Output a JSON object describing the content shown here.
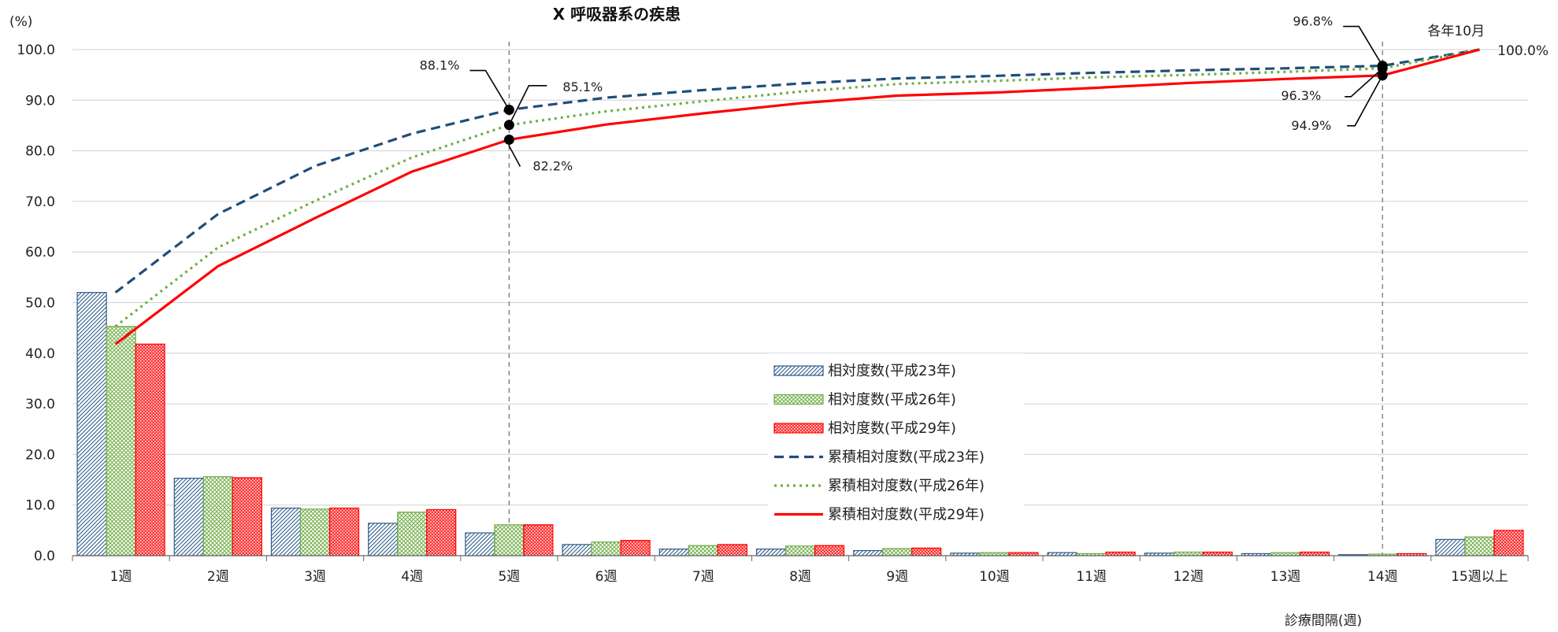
{
  "chart_data": {
    "type": "bar",
    "title": "X 呼吸器系の疾患",
    "ylabel": "(%)",
    "xlabel": "診療間隔(週)",
    "ylim": [
      0,
      100
    ],
    "yticks": [
      "0.0",
      "10.0",
      "20.0",
      "30.0",
      "40.0",
      "50.0",
      "60.0",
      "70.0",
      "80.0",
      "90.0",
      "100.0"
    ],
    "categories": [
      "1週",
      "2週",
      "3週",
      "4週",
      "5週",
      "6週",
      "7週",
      "8週",
      "9週",
      "10週",
      "11週",
      "12週",
      "13週",
      "14週",
      "15週以上"
    ],
    "grid": true,
    "legend_position": "center",
    "series": [
      {
        "name": "相対度数(平成23年)",
        "kind": "bar",
        "color": "#2e5c8a",
        "pattern": "diag",
        "values": [
          52.0,
          15.3,
          9.4,
          6.4,
          4.5,
          2.2,
          1.3,
          1.3,
          1.0,
          0.5,
          0.6,
          0.5,
          0.4,
          0.2,
          3.2
        ]
      },
      {
        "name": "相対度数(平成26年)",
        "kind": "bar",
        "color": "#70ad47",
        "pattern": "cross",
        "values": [
          45.3,
          15.6,
          9.2,
          8.6,
          6.1,
          2.7,
          2.0,
          1.9,
          1.4,
          0.6,
          0.4,
          0.7,
          0.6,
          0.3,
          3.7
        ]
      },
      {
        "name": "相対度数(平成29年)",
        "kind": "bar",
        "color": "#ff0000",
        "pattern": "dots",
        "values": [
          41.8,
          15.4,
          9.4,
          9.1,
          6.1,
          3.0,
          2.2,
          2.0,
          1.5,
          0.6,
          0.7,
          0.7,
          0.7,
          0.4,
          5.0
        ]
      },
      {
        "name": "累積相対度数(平成23年)",
        "kind": "line",
        "color": "#1f4e79",
        "dash": "dashed",
        "values": [
          52.0,
          67.5,
          77.0,
          83.4,
          88.1,
          90.5,
          92.0,
          93.3,
          94.3,
          94.8,
          95.4,
          95.9,
          96.3,
          96.8,
          100.0
        ]
      },
      {
        "name": "累積相対度数(平成26年)",
        "kind": "line",
        "color": "#70ad47",
        "dash": "dotted",
        "values": [
          45.3,
          60.9,
          70.1,
          78.7,
          85.1,
          87.8,
          89.8,
          91.7,
          93.2,
          93.8,
          94.5,
          95.0,
          95.6,
          96.3,
          100.0
        ]
      },
      {
        "name": "累積相対度数(平成29年)",
        "kind": "line",
        "color": "#ff0000",
        "dash": "solid",
        "values": [
          41.8,
          57.2,
          66.7,
          75.9,
          82.2,
          85.2,
          87.4,
          89.4,
          90.9,
          91.5,
          92.4,
          93.4,
          94.2,
          94.9,
          100.0
        ]
      }
    ],
    "reference_lines": [
      {
        "category": "5週"
      },
      {
        "category": "14週"
      }
    ],
    "annotations": [
      {
        "text": "88.1%",
        "category": "5週",
        "value": 88.1,
        "side": "upper-left"
      },
      {
        "text": "85.1%",
        "category": "5週",
        "value": 85.1,
        "side": "upper-right"
      },
      {
        "text": "82.2%",
        "category": "5週",
        "value": 82.2,
        "side": "lower-right"
      },
      {
        "text": "96.8%",
        "category": "14週",
        "value": 96.8,
        "side": "upper-left"
      },
      {
        "text": "96.3%",
        "category": "14週",
        "value": 96.3,
        "side": "left"
      },
      {
        "text": "94.9%",
        "category": "14週",
        "value": 94.9,
        "side": "lower-left"
      }
    ],
    "end_annotation": {
      "line1": "各年10月",
      "line2": "100.0%"
    }
  }
}
